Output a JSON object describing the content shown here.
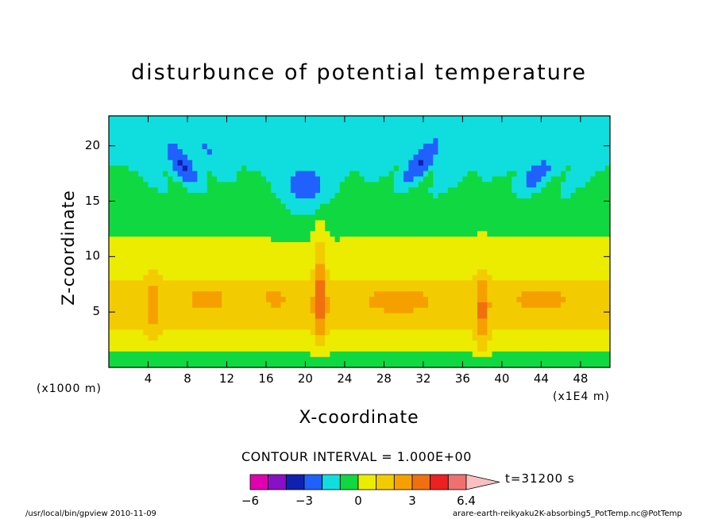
{
  "chart_data": {
    "type": "heatmap",
    "title": "disturbunce of potential temperature",
    "xlabel": "X-coordinate",
    "ylabel": "Z-coordinate",
    "x_ticks": [
      4,
      8,
      12,
      16,
      20,
      24,
      28,
      32,
      36,
      40,
      44,
      48
    ],
    "x_unit": "(x1E4 m)",
    "xlim": [
      0,
      51
    ],
    "y_ticks": [
      5,
      10,
      15,
      20
    ],
    "y_unit": "(x1000 m)",
    "ylim": [
      0,
      22.7
    ],
    "contour_interval": "CONTOUR INTERVAL = 1.000E+00",
    "time_label": "t=31200 s",
    "colorbar": {
      "tick_labels": [
        "−6",
        "−3",
        "0",
        "3",
        "6.4"
      ],
      "tick_values": [
        -6,
        -3,
        0,
        3,
        6.4
      ],
      "levels": [
        -6,
        -5,
        -4,
        -3,
        -2,
        -1,
        0,
        1,
        2,
        3,
        4,
        5,
        6
      ],
      "colors": [
        "#e000b0",
        "#8a10c8",
        "#1020b0",
        "#2060ff",
        "#10dede",
        "#10d840",
        "#ecec00",
        "#f2cc00",
        "#f6a000",
        "#f07010",
        "#ee2020",
        "#f07070",
        "#f8c0c0"
      ]
    }
  },
  "footer": {
    "left": "/usr/local/bin/gpview  2010-11-09",
    "right": "arare-earth-reikyaku2K-absorbing5_PotTemp.nc@PotTemp"
  }
}
